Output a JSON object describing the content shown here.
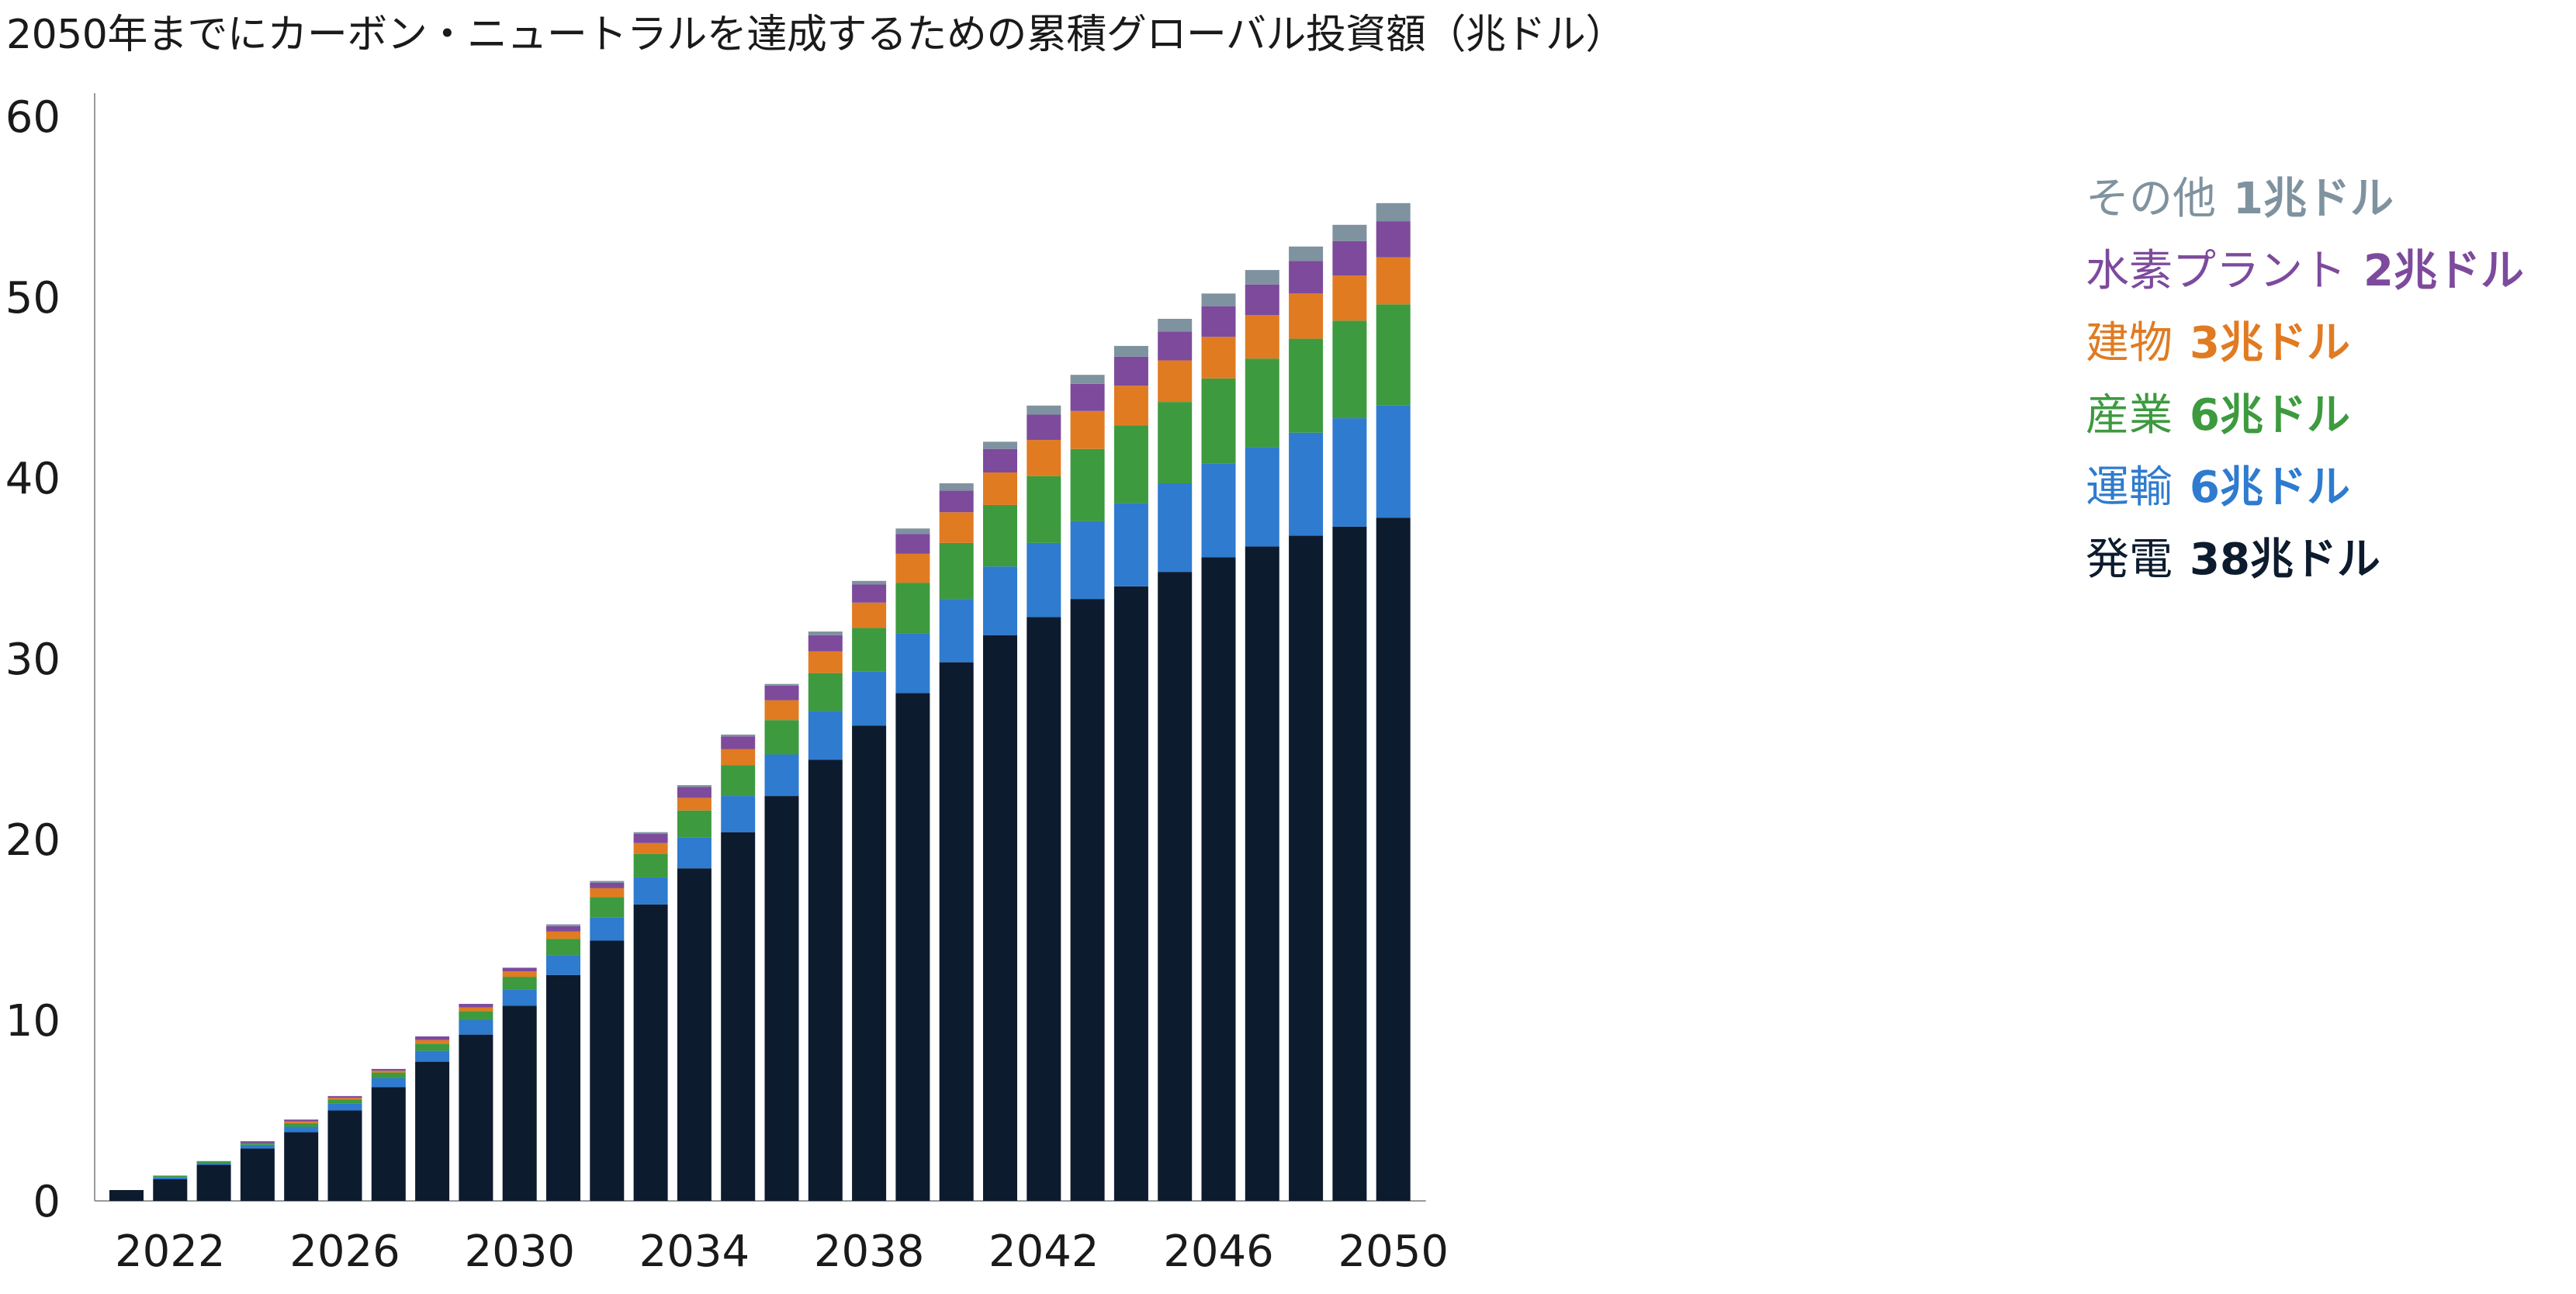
{
  "chart_data": {
    "type": "bar",
    "stacked": true,
    "title": "2050年までにカーボン・ニュートラルを達成するための累積グローバル投資額（兆ドル）",
    "xlabel": "",
    "ylabel": "",
    "ylim": [
      0,
      60
    ],
    "yticks": [
      0,
      10,
      20,
      30,
      40,
      50,
      60
    ],
    "x_tick_labels": [
      "2022",
      "2026",
      "2030",
      "2034",
      "2038",
      "2042",
      "2046",
      "2050"
    ],
    "grid": false,
    "legend_position": "right",
    "categories": [
      2021,
      2022,
      2023,
      2024,
      2025,
      2026,
      2027,
      2028,
      2029,
      2030,
      2031,
      2032,
      2033,
      2034,
      2035,
      2036,
      2037,
      2038,
      2039,
      2040,
      2041,
      2042,
      2043,
      2044,
      2045,
      2046,
      2047,
      2048,
      2049,
      2050
    ],
    "series": [
      {
        "name": "発電",
        "total": "38兆ドル",
        "color": "#0d1b2e",
        "values": [
          0.6,
          1.2,
          2.0,
          2.9,
          3.8,
          5.0,
          6.3,
          7.7,
          9.2,
          10.8,
          12.5,
          14.4,
          16.4,
          18.4,
          20.4,
          22.4,
          24.4,
          26.3,
          28.1,
          29.8,
          31.3,
          32.3,
          33.3,
          34.0,
          34.8,
          35.6,
          36.2,
          36.8,
          37.3,
          37.8
        ]
      },
      {
        "name": "運輸",
        "total": "6兆ドル",
        "color": "#2e7bcf",
        "values": [
          0.0,
          0.1,
          0.1,
          0.2,
          0.3,
          0.4,
          0.5,
          0.6,
          0.8,
          0.9,
          1.1,
          1.3,
          1.5,
          1.7,
          2.0,
          2.3,
          2.7,
          3.0,
          3.3,
          3.5,
          3.8,
          4.1,
          4.3,
          4.6,
          4.9,
          5.2,
          5.5,
          5.7,
          6.0,
          6.2
        ]
      },
      {
        "name": "産業",
        "total": "6兆ドル",
        "color": "#3d9a3f",
        "values": [
          0.0,
          0.1,
          0.1,
          0.1,
          0.2,
          0.2,
          0.3,
          0.4,
          0.5,
          0.7,
          0.9,
          1.1,
          1.3,
          1.5,
          1.7,
          1.9,
          2.1,
          2.4,
          2.8,
          3.1,
          3.4,
          3.7,
          4.0,
          4.3,
          4.5,
          4.7,
          4.9,
          5.2,
          5.4,
          5.6
        ]
      },
      {
        "name": "建物",
        "total": "3兆ドル",
        "color": "#e07b22",
        "values": [
          0.0,
          0.0,
          0.0,
          0.0,
          0.1,
          0.1,
          0.1,
          0.2,
          0.2,
          0.3,
          0.4,
          0.5,
          0.6,
          0.7,
          0.9,
          1.1,
          1.2,
          1.4,
          1.6,
          1.7,
          1.8,
          2.0,
          2.1,
          2.2,
          2.3,
          2.3,
          2.4,
          2.5,
          2.5,
          2.6
        ]
      },
      {
        "name": "水素プラント",
        "total": "2兆ドル",
        "color": "#7d4a9c",
        "values": [
          0.0,
          0.0,
          0.0,
          0.1,
          0.1,
          0.1,
          0.1,
          0.2,
          0.2,
          0.2,
          0.3,
          0.3,
          0.5,
          0.6,
          0.7,
          0.8,
          0.9,
          1.0,
          1.1,
          1.2,
          1.3,
          1.4,
          1.5,
          1.6,
          1.6,
          1.7,
          1.7,
          1.8,
          1.9,
          2.0
        ]
      },
      {
        "name": "その他",
        "total": "1兆ドル",
        "color": "#7f929f",
        "values": [
          0.0,
          0.0,
          0.0,
          0.0,
          0.0,
          0.0,
          0.0,
          0.0,
          0.0,
          0.0,
          0.1,
          0.1,
          0.1,
          0.1,
          0.1,
          0.1,
          0.2,
          0.2,
          0.3,
          0.4,
          0.4,
          0.5,
          0.5,
          0.6,
          0.7,
          0.7,
          0.8,
          0.8,
          0.9,
          1.0
        ]
      }
    ]
  }
}
